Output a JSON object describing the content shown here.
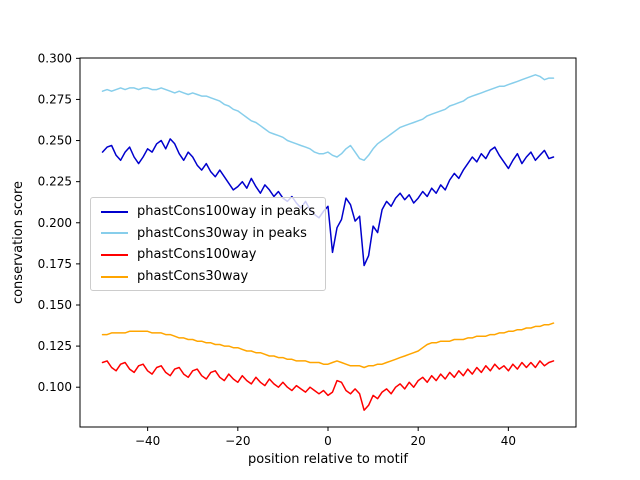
{
  "figure": {
    "background": "#ffffff"
  },
  "chart_data": {
    "type": "line",
    "title": "",
    "xlabel": "position relative to motif",
    "ylabel": "conservation score",
    "grid": false,
    "legend_position": "center-left",
    "xlim": [
      -55,
      55
    ],
    "ylim": [
      0.0758,
      0.3002
    ],
    "xticks": [
      -40,
      -20,
      0,
      20,
      40
    ],
    "xticklabels": [
      "−40",
      "−20",
      "0",
      "20",
      "40"
    ],
    "yticks": [
      0.1,
      0.125,
      0.15,
      0.175,
      0.2,
      0.225,
      0.25,
      0.275,
      0.3
    ],
    "yticklabels": [
      "0.100",
      "0.125",
      "0.150",
      "0.175",
      "0.200",
      "0.225",
      "0.250",
      "0.275",
      "0.300"
    ],
    "x": [
      -50,
      -49,
      -48,
      -47,
      -46,
      -45,
      -44,
      -43,
      -42,
      -41,
      -40,
      -39,
      -38,
      -37,
      -36,
      -35,
      -34,
      -33,
      -32,
      -31,
      -30,
      -29,
      -28,
      -27,
      -26,
      -25,
      -24,
      -23,
      -22,
      -21,
      -20,
      -19,
      -18,
      -17,
      -16,
      -15,
      -14,
      -13,
      -12,
      -11,
      -10,
      -9,
      -8,
      -7,
      -6,
      -5,
      -4,
      -3,
      -2,
      -1,
      0,
      1,
      2,
      3,
      4,
      5,
      6,
      7,
      8,
      9,
      10,
      11,
      12,
      13,
      14,
      15,
      16,
      17,
      18,
      19,
      20,
      21,
      22,
      23,
      24,
      25,
      26,
      27,
      28,
      29,
      30,
      31,
      32,
      33,
      34,
      35,
      36,
      37,
      38,
      39,
      40,
      41,
      42,
      43,
      44,
      45,
      46,
      47,
      48,
      49,
      50
    ],
    "series": [
      {
        "name": "phastCons100way in peaks",
        "color": "#0000cd",
        "values": [
          0.243,
          0.246,
          0.247,
          0.241,
          0.238,
          0.243,
          0.246,
          0.24,
          0.236,
          0.24,
          0.245,
          0.243,
          0.248,
          0.25,
          0.245,
          0.251,
          0.248,
          0.242,
          0.238,
          0.243,
          0.24,
          0.235,
          0.232,
          0.236,
          0.231,
          0.228,
          0.232,
          0.228,
          0.224,
          0.22,
          0.222,
          0.225,
          0.221,
          0.227,
          0.222,
          0.218,
          0.223,
          0.22,
          0.216,
          0.219,
          0.215,
          0.213,
          0.216,
          0.212,
          0.209,
          0.213,
          0.208,
          0.205,
          0.203,
          0.207,
          0.21,
          0.182,
          0.197,
          0.202,
          0.215,
          0.211,
          0.201,
          0.204,
          0.174,
          0.18,
          0.198,
          0.194,
          0.208,
          0.213,
          0.21,
          0.215,
          0.218,
          0.214,
          0.217,
          0.212,
          0.215,
          0.219,
          0.216,
          0.221,
          0.218,
          0.223,
          0.22,
          0.226,
          0.23,
          0.227,
          0.232,
          0.236,
          0.24,
          0.237,
          0.242,
          0.239,
          0.244,
          0.246,
          0.241,
          0.237,
          0.233,
          0.238,
          0.242,
          0.236,
          0.24,
          0.243,
          0.238,
          0.241,
          0.244,
          0.239,
          0.24
        ]
      },
      {
        "name": "phastCons30way in peaks",
        "color": "#87ceeb",
        "values": [
          0.28,
          0.281,
          0.28,
          0.281,
          0.282,
          0.281,
          0.282,
          0.282,
          0.281,
          0.282,
          0.282,
          0.281,
          0.281,
          0.282,
          0.281,
          0.28,
          0.279,
          0.28,
          0.279,
          0.278,
          0.279,
          0.278,
          0.277,
          0.277,
          0.276,
          0.275,
          0.274,
          0.272,
          0.271,
          0.269,
          0.268,
          0.266,
          0.264,
          0.262,
          0.261,
          0.259,
          0.257,
          0.255,
          0.254,
          0.253,
          0.252,
          0.25,
          0.249,
          0.248,
          0.247,
          0.246,
          0.245,
          0.243,
          0.242,
          0.242,
          0.243,
          0.241,
          0.24,
          0.242,
          0.245,
          0.247,
          0.243,
          0.239,
          0.238,
          0.241,
          0.245,
          0.248,
          0.25,
          0.252,
          0.254,
          0.256,
          0.258,
          0.259,
          0.26,
          0.261,
          0.262,
          0.263,
          0.265,
          0.266,
          0.267,
          0.268,
          0.269,
          0.271,
          0.272,
          0.273,
          0.274,
          0.276,
          0.277,
          0.278,
          0.279,
          0.28,
          0.281,
          0.282,
          0.283,
          0.283,
          0.284,
          0.285,
          0.286,
          0.287,
          0.288,
          0.289,
          0.29,
          0.289,
          0.287,
          0.288,
          0.288
        ]
      },
      {
        "name": "phastCons100way",
        "color": "#ff0000",
        "values": [
          0.115,
          0.116,
          0.112,
          0.11,
          0.114,
          0.115,
          0.111,
          0.109,
          0.113,
          0.114,
          0.11,
          0.108,
          0.112,
          0.113,
          0.109,
          0.107,
          0.111,
          0.112,
          0.108,
          0.106,
          0.11,
          0.111,
          0.107,
          0.105,
          0.109,
          0.11,
          0.106,
          0.104,
          0.108,
          0.105,
          0.103,
          0.107,
          0.104,
          0.102,
          0.106,
          0.103,
          0.101,
          0.105,
          0.102,
          0.1,
          0.103,
          0.1,
          0.098,
          0.101,
          0.099,
          0.097,
          0.1,
          0.098,
          0.096,
          0.098,
          0.095,
          0.097,
          0.104,
          0.103,
          0.098,
          0.096,
          0.099,
          0.096,
          0.086,
          0.089,
          0.095,
          0.093,
          0.097,
          0.099,
          0.096,
          0.1,
          0.102,
          0.099,
          0.103,
          0.1,
          0.104,
          0.106,
          0.103,
          0.107,
          0.104,
          0.108,
          0.105,
          0.109,
          0.106,
          0.11,
          0.107,
          0.111,
          0.108,
          0.112,
          0.109,
          0.113,
          0.11,
          0.114,
          0.111,
          0.113,
          0.11,
          0.114,
          0.111,
          0.115,
          0.112,
          0.115,
          0.112,
          0.116,
          0.113,
          0.115,
          0.116
        ]
      },
      {
        "name": "phastCons30way",
        "color": "#ffa500",
        "values": [
          0.132,
          0.132,
          0.133,
          0.133,
          0.133,
          0.133,
          0.134,
          0.134,
          0.134,
          0.134,
          0.134,
          0.133,
          0.133,
          0.133,
          0.132,
          0.132,
          0.131,
          0.13,
          0.13,
          0.129,
          0.129,
          0.128,
          0.128,
          0.127,
          0.127,
          0.126,
          0.126,
          0.125,
          0.125,
          0.124,
          0.124,
          0.123,
          0.122,
          0.122,
          0.121,
          0.121,
          0.12,
          0.119,
          0.119,
          0.118,
          0.118,
          0.117,
          0.117,
          0.116,
          0.116,
          0.116,
          0.115,
          0.115,
          0.115,
          0.114,
          0.114,
          0.115,
          0.116,
          0.115,
          0.114,
          0.113,
          0.113,
          0.113,
          0.112,
          0.113,
          0.113,
          0.114,
          0.114,
          0.115,
          0.116,
          0.117,
          0.118,
          0.119,
          0.12,
          0.121,
          0.122,
          0.124,
          0.126,
          0.127,
          0.127,
          0.128,
          0.128,
          0.128,
          0.129,
          0.129,
          0.129,
          0.13,
          0.13,
          0.131,
          0.131,
          0.131,
          0.132,
          0.132,
          0.133,
          0.133,
          0.134,
          0.134,
          0.135,
          0.135,
          0.136,
          0.136,
          0.137,
          0.137,
          0.138,
          0.138,
          0.139
        ]
      }
    ]
  }
}
